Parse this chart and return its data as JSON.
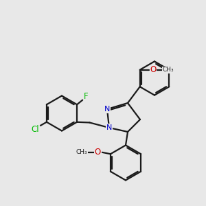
{
  "background_color": "#e8e8e8",
  "bond_color": "#1a1a1a",
  "N_color": "#0000cc",
  "Cl_color": "#00bb00",
  "F_color": "#00bb00",
  "O_color": "#cc0000",
  "bond_width": 1.6,
  "dbo": 0.07,
  "figsize": [
    3.0,
    3.0
  ],
  "dpi": 100,
  "xlim": [
    0,
    10
  ],
  "ylim": [
    0,
    10
  ]
}
